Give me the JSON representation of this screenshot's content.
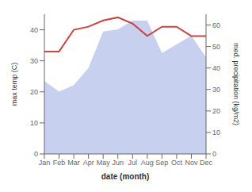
{
  "chart_data": {
    "type": "line",
    "categories": [
      "Jan",
      "Feb",
      "Mar",
      "Apr",
      "May",
      "Jun",
      "Jul",
      "Aug",
      "Sep",
      "Oct",
      "Nov",
      "Dec"
    ],
    "series": [
      {
        "type": "area",
        "axis": "y2",
        "color": "#c8d0f0",
        "values": [
          34,
          29,
          32,
          40,
          57,
          58,
          62,
          62,
          47,
          51,
          55,
          45
        ]
      },
      {
        "type": "line",
        "color": "#c94444",
        "values": [
          33,
          33,
          40,
          41,
          43,
          44,
          42,
          38,
          41,
          41,
          38,
          38
        ]
      }
    ],
    "x_label": "date (month)",
    "y_label": "max temp (C)",
    "y2_label": "med. precipitation (kg/m2)",
    "ylim": [
      0,
      45
    ],
    "yticks": [
      0,
      10,
      20,
      30,
      40
    ],
    "y2lim": [
      0,
      65
    ],
    "y2ticks": [
      0,
      10,
      20,
      30,
      40,
      50,
      60
    ],
    "grid": false
  }
}
